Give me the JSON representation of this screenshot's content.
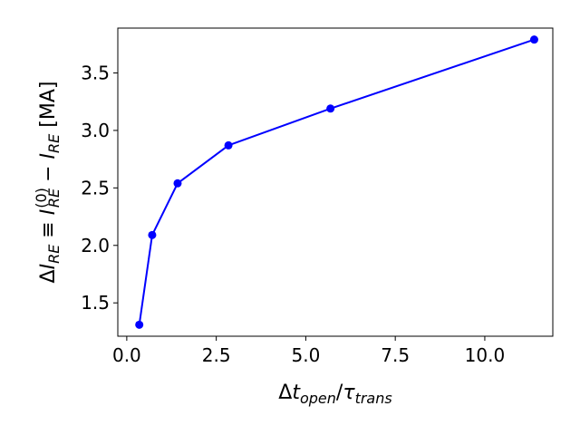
{
  "chart_data": {
    "type": "line",
    "title": "",
    "xlabel": "Δt_open/τ_trans",
    "ylabel": "ΔI_RE ≡ I_RE^(0) − I_RE [MA]",
    "xlim": [
      -0.25,
      11.9
    ],
    "ylim": [
      1.21,
      3.89
    ],
    "x_ticks": [
      0.0,
      2.5,
      5.0,
      7.5,
      10.0
    ],
    "x_tick_labels": [
      "0.0",
      "2.5",
      "5.0",
      "7.5",
      "10.0"
    ],
    "y_ticks": [
      1.5,
      2.0,
      2.5,
      3.0,
      3.5
    ],
    "y_tick_labels": [
      "1.5",
      "2.0",
      "2.5",
      "3.0",
      "3.5"
    ],
    "grid": false,
    "legend": "none",
    "series": [
      {
        "color": "#0000ff",
        "marker": "circle",
        "x": [
          0.35,
          0.71,
          1.42,
          2.84,
          5.69,
          11.38
        ],
        "y": [
          1.31,
          2.09,
          2.54,
          2.87,
          3.19,
          3.79
        ]
      }
    ]
  }
}
